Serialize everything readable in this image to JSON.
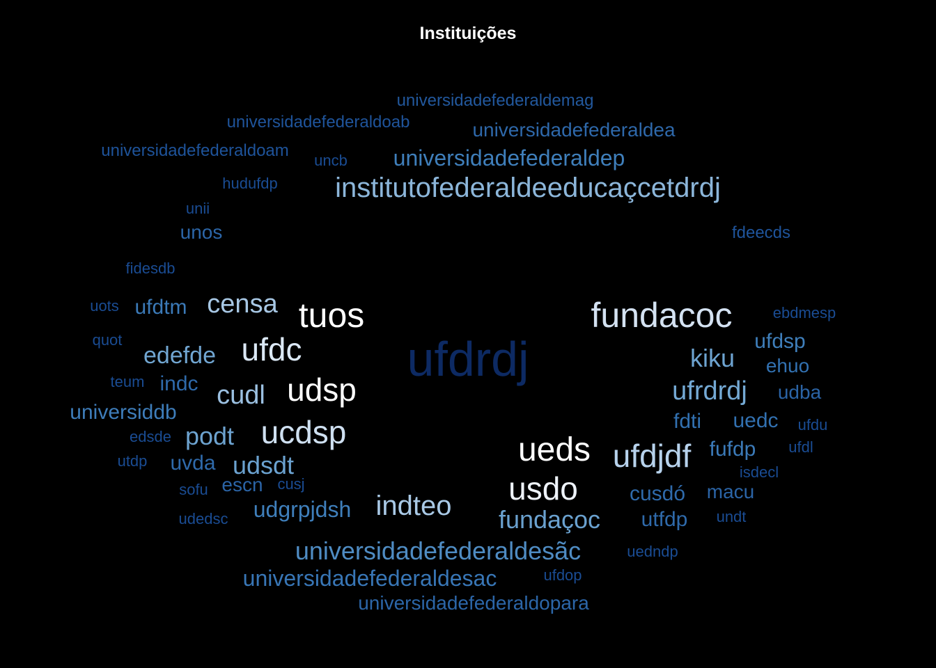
{
  "title": "Instituições",
  "chart_data": {
    "type": "wordcloud",
    "title": "Instituições",
    "background": "#000000",
    "words": [
      {
        "text": "ufdrdj",
        "color": "#0d2a63"
      },
      {
        "text": "fundacoc",
        "color": "#d4e2f2"
      },
      {
        "text": "tuos",
        "color": "#ffffff"
      },
      {
        "text": "udsp",
        "color": "#ffffff"
      },
      {
        "text": "ueds",
        "color": "#ffffff"
      },
      {
        "text": "usdo",
        "color": "#eef3fa"
      },
      {
        "text": "ufdc",
        "color": "#dbe8f5"
      },
      {
        "text": "ucdsp",
        "color": "#cfe0f1"
      },
      {
        "text": "ufdjdf",
        "color": "#b7d2ec"
      },
      {
        "text": "institutofederaldeeducaçcetdrdj",
        "color": "#8cb6da"
      },
      {
        "text": "indteo",
        "color": "#a9c9e6"
      },
      {
        "text": "censa",
        "color": "#a7c7e4"
      },
      {
        "text": "cudl",
        "color": "#9bc0e1"
      },
      {
        "text": "ufrdrdj",
        "color": "#74a9d4"
      },
      {
        "text": "udsdt",
        "color": "#6ba2d0"
      },
      {
        "text": "fundaçoc",
        "color": "#6aa1cf"
      },
      {
        "text": "kiku",
        "color": "#6da3d0"
      },
      {
        "text": "edefde",
        "color": "#71a6d2"
      },
      {
        "text": "podt",
        "color": "#6da3d0"
      },
      {
        "text": "universidadefederaldesãc",
        "color": "#4f8cc3"
      },
      {
        "text": "universidadefederaldep",
        "color": "#3f7fbb"
      },
      {
        "text": "udgrpjdsh",
        "color": "#3f7fbb"
      },
      {
        "text": "universidadefederaldesac",
        "color": "#3876b6"
      },
      {
        "text": "universidadefederaldopara",
        "color": "#2c66a8"
      },
      {
        "text": "universidadefederaldea",
        "color": "#2e68aa"
      },
      {
        "text": "universiddb",
        "color": "#3e7dba"
      },
      {
        "text": "ufdtm",
        "color": "#3b7ab8"
      },
      {
        "text": "ufdsp",
        "color": "#3f7fbb"
      },
      {
        "text": "fufdp",
        "color": "#3b7ab8"
      },
      {
        "text": "cusdó",
        "color": "#2f6aab"
      },
      {
        "text": "utfdp",
        "color": "#2f6aab"
      },
      {
        "text": "uedc",
        "color": "#3271b1"
      },
      {
        "text": "fdti",
        "color": "#3271b1"
      },
      {
        "text": "ehuo",
        "color": "#3271b1"
      },
      {
        "text": "unos",
        "color": "#2c66a8"
      },
      {
        "text": "uvda",
        "color": "#2f6aab"
      },
      {
        "text": "indc",
        "color": "#2f6aab"
      },
      {
        "text": "macu",
        "color": "#2b64a6"
      },
      {
        "text": "udba",
        "color": "#2b64a6"
      },
      {
        "text": "escn",
        "color": "#2b64a6"
      },
      {
        "text": "universidadefederaldoab",
        "color": "#1f549b"
      },
      {
        "text": "universidadefederaldemag",
        "color": "#22589d"
      },
      {
        "text": "universidadefederaldoam",
        "color": "#1e539a"
      },
      {
        "text": "fdeecds",
        "color": "#1f549b"
      },
      {
        "text": "ebdmesp",
        "color": "#1a4c93"
      },
      {
        "text": "fidesdb",
        "color": "#1a4c93"
      },
      {
        "text": "hudufdp",
        "color": "#1a4c93"
      },
      {
        "text": "uncb",
        "color": "#1a4c93"
      },
      {
        "text": "unii",
        "color": "#1a4c93"
      },
      {
        "text": "uots",
        "color": "#1a4c93"
      },
      {
        "text": "quot",
        "color": "#1a4c93"
      },
      {
        "text": "teum",
        "color": "#1a4c93"
      },
      {
        "text": "edsde",
        "color": "#1a4c93"
      },
      {
        "text": "utdp",
        "color": "#1a4c93"
      },
      {
        "text": "sofu",
        "color": "#1a4c93"
      },
      {
        "text": "cusj",
        "color": "#1a4c93"
      },
      {
        "text": "udedsc",
        "color": "#1a4c93"
      },
      {
        "text": "uedndp",
        "color": "#1a4c93"
      },
      {
        "text": "ufdop",
        "color": "#1a4c93"
      },
      {
        "text": "isdecl",
        "color": "#1a4c93"
      },
      {
        "text": "undt",
        "color": "#1a4c93"
      },
      {
        "text": "ufdu",
        "color": "#1a4c93"
      },
      {
        "text": "ufdl",
        "color": "#1a4c93"
      }
    ]
  }
}
